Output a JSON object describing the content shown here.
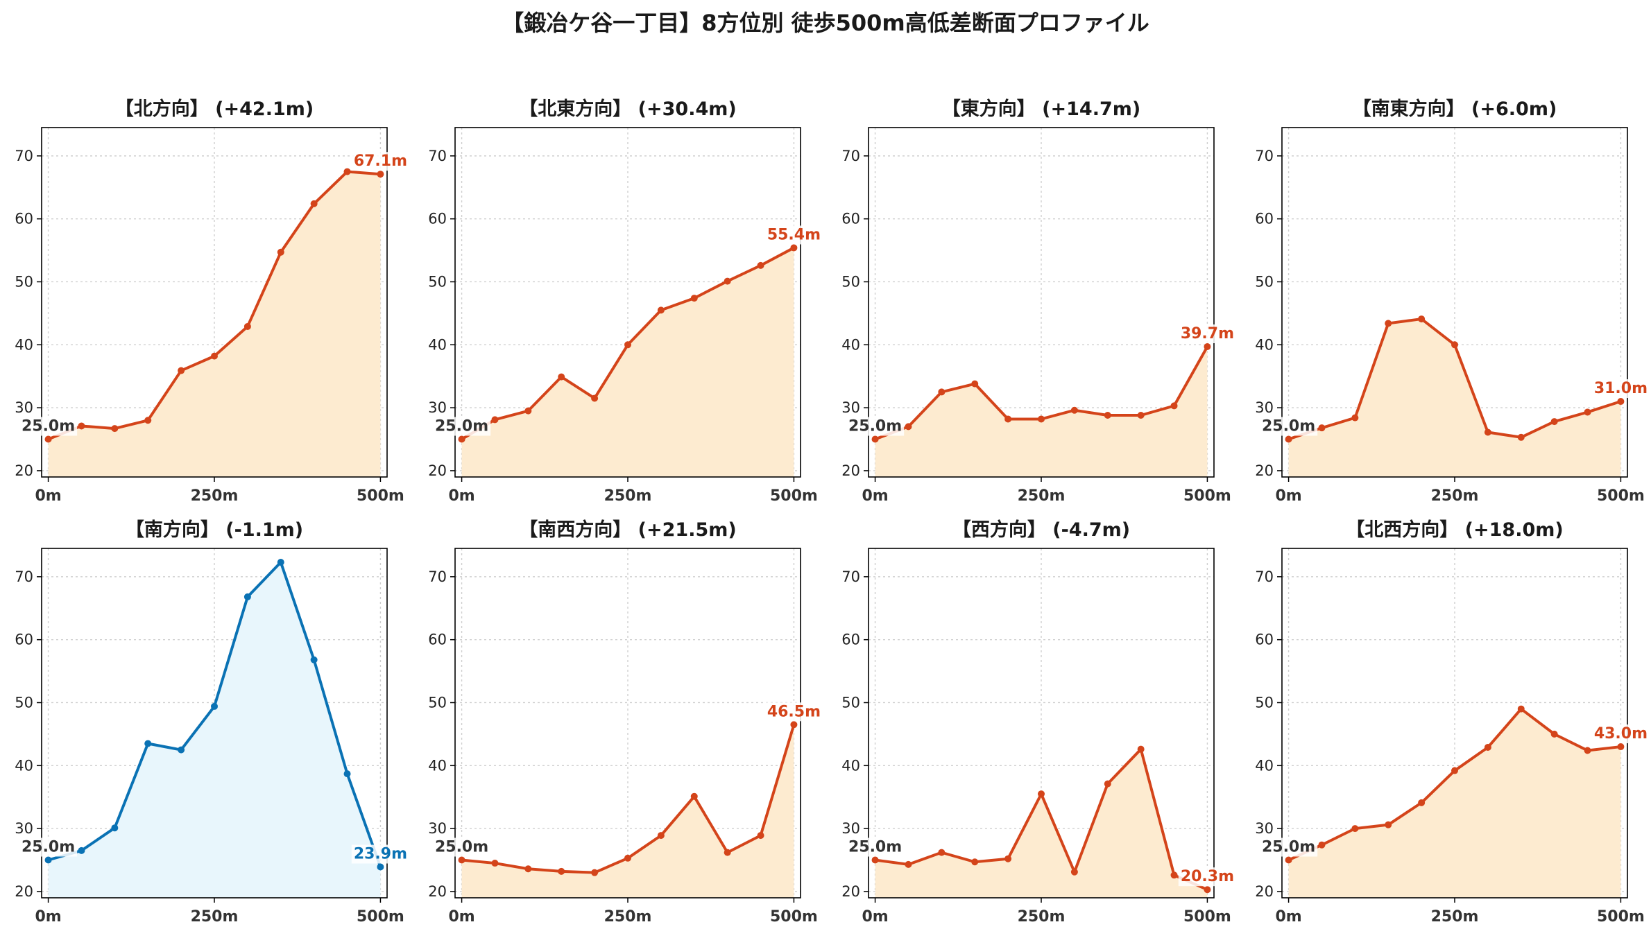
{
  "figure": {
    "title": "【鍛冶ケ谷一丁目】8方位別 徒歩500m高低差断面プロファイル"
  },
  "colors": {
    "rise_line": "#d4441a",
    "rise_fill": "#fdebd0",
    "fall_line": "#0a72b4",
    "fall_fill": "#e8f6fc",
    "start_label": "#333333"
  },
  "chart_data": [
    {
      "type": "area",
      "title": "【北方向】 (+42.1m)",
      "x": [
        0,
        50,
        100,
        150,
        200,
        250,
        300,
        350,
        400,
        450,
        500
      ],
      "y": [
        25.0,
        27.1,
        26.7,
        28.0,
        35.9,
        38.2,
        42.9,
        54.7,
        62.4,
        67.5,
        67.1
      ],
      "xticks": [
        "0m",
        "250m",
        "500m"
      ],
      "yticks": [
        "20",
        "30",
        "40",
        "50",
        "60",
        "70"
      ],
      "xlim": [
        -10,
        510
      ],
      "ylim": [
        19,
        74.5
      ],
      "start_label": "25.0m",
      "end_label": "67.1m",
      "style": "rise",
      "grid": true
    },
    {
      "type": "area",
      "title": "【北東方向】 (+30.4m)",
      "x": [
        0,
        50,
        100,
        150,
        200,
        250,
        300,
        350,
        400,
        450,
        500
      ],
      "y": [
        25.0,
        28.1,
        29.5,
        34.9,
        31.5,
        40.0,
        45.5,
        47.4,
        50.1,
        52.6,
        55.4
      ],
      "xticks": [
        "0m",
        "250m",
        "500m"
      ],
      "yticks": [
        "20",
        "30",
        "40",
        "50",
        "60",
        "70"
      ],
      "xlim": [
        -10,
        510
      ],
      "ylim": [
        19,
        74.5
      ],
      "start_label": "25.0m",
      "end_label": "55.4m",
      "style": "rise",
      "grid": true
    },
    {
      "type": "area",
      "title": "【東方向】 (+14.7m)",
      "x": [
        0,
        50,
        100,
        150,
        200,
        250,
        300,
        350,
        400,
        450,
        500
      ],
      "y": [
        25.0,
        27.0,
        32.5,
        33.8,
        28.2,
        28.2,
        29.6,
        28.8,
        28.8,
        30.3,
        39.7
      ],
      "xticks": [
        "0m",
        "250m",
        "500m"
      ],
      "yticks": [
        "20",
        "30",
        "40",
        "50",
        "60",
        "70"
      ],
      "xlim": [
        -10,
        510
      ],
      "ylim": [
        19,
        74.5
      ],
      "start_label": "25.0m",
      "end_label": "39.7m",
      "style": "rise",
      "grid": true
    },
    {
      "type": "area",
      "title": "【南東方向】 (+6.0m)",
      "x": [
        0,
        50,
        100,
        150,
        200,
        250,
        300,
        350,
        400,
        450,
        500
      ],
      "y": [
        25.0,
        26.8,
        28.4,
        43.4,
        44.1,
        40.0,
        26.1,
        25.3,
        27.8,
        29.3,
        31.0
      ],
      "xticks": [
        "0m",
        "250m",
        "500m"
      ],
      "yticks": [
        "20",
        "30",
        "40",
        "50",
        "60",
        "70"
      ],
      "xlim": [
        -10,
        510
      ],
      "ylim": [
        19,
        74.5
      ],
      "start_label": "25.0m",
      "end_label": "31.0m",
      "style": "rise",
      "grid": true
    },
    {
      "type": "area",
      "title": "【南方向】 (-1.1m)",
      "x": [
        0,
        50,
        100,
        150,
        200,
        250,
        300,
        350,
        400,
        450,
        500
      ],
      "y": [
        25.0,
        26.5,
        30.1,
        43.5,
        42.5,
        49.4,
        66.8,
        72.3,
        56.8,
        38.7,
        23.9
      ],
      "xticks": [
        "0m",
        "250m",
        "500m"
      ],
      "yticks": [
        "20",
        "30",
        "40",
        "50",
        "60",
        "70"
      ],
      "xlim": [
        -10,
        510
      ],
      "ylim": [
        19,
        74.5
      ],
      "start_label": "25.0m",
      "end_label": "23.9m",
      "style": "fall",
      "grid": true
    },
    {
      "type": "area",
      "title": "【南西方向】 (+21.5m)",
      "x": [
        0,
        50,
        100,
        150,
        200,
        250,
        300,
        350,
        400,
        450,
        500
      ],
      "y": [
        25.0,
        24.5,
        23.6,
        23.2,
        23.0,
        25.3,
        28.9,
        35.1,
        26.2,
        28.9,
        46.5
      ],
      "xticks": [
        "0m",
        "250m",
        "500m"
      ],
      "yticks": [
        "20",
        "30",
        "40",
        "50",
        "60",
        "70"
      ],
      "xlim": [
        -10,
        510
      ],
      "ylim": [
        19,
        74.5
      ],
      "start_label": "25.0m",
      "end_label": "46.5m",
      "style": "rise",
      "grid": true
    },
    {
      "type": "area",
      "title": "【西方向】 (-4.7m)",
      "x": [
        0,
        50,
        100,
        150,
        200,
        250,
        300,
        350,
        400,
        450,
        500
      ],
      "y": [
        25.0,
        24.3,
        26.2,
        24.7,
        25.2,
        35.5,
        23.1,
        37.1,
        42.6,
        22.6,
        20.3
      ],
      "xticks": [
        "0m",
        "250m",
        "500m"
      ],
      "yticks": [
        "20",
        "30",
        "40",
        "50",
        "60",
        "70"
      ],
      "xlim": [
        -10,
        510
      ],
      "ylim": [
        19,
        74.5
      ],
      "start_label": "25.0m",
      "end_label": "20.3m",
      "style": "rise",
      "grid": true
    },
    {
      "type": "area",
      "title": "【北西方向】 (+18.0m)",
      "x": [
        0,
        50,
        100,
        150,
        200,
        250,
        300,
        350,
        400,
        450,
        500
      ],
      "y": [
        25.0,
        27.4,
        30.0,
        30.6,
        34.1,
        39.2,
        42.9,
        49.0,
        45.0,
        42.4,
        43.0
      ],
      "xticks": [
        "0m",
        "250m",
        "500m"
      ],
      "yticks": [
        "20",
        "30",
        "40",
        "50",
        "60",
        "70"
      ],
      "xlim": [
        -10,
        510
      ],
      "ylim": [
        19,
        74.5
      ],
      "start_label": "25.0m",
      "end_label": "43.0m",
      "style": "rise",
      "grid": true
    }
  ]
}
